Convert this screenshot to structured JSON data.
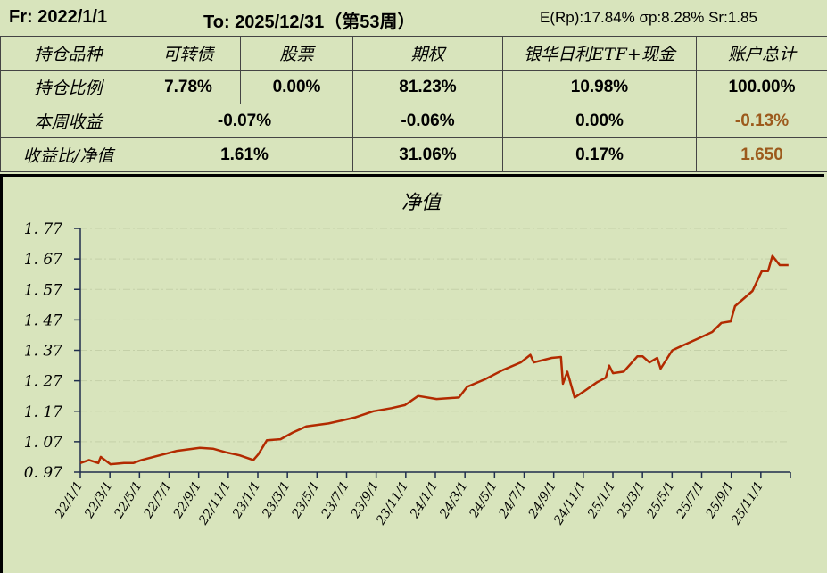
{
  "header": {
    "from": "Fr: 2022/1/1",
    "to": "To:  2025/12/31（第53周）",
    "stats": "E(Rp):17.84%  σp:8.28%  Sr:1.85"
  },
  "table": {
    "headers": [
      "持仓品种",
      "可转债",
      "股票",
      "期权",
      "银华日利ETF+现金",
      "账户总计"
    ],
    "position_ratio": {
      "label": "持仓比例",
      "values": [
        "7.78%",
        "0.00%",
        "81.23%",
        "10.98%",
        "100.00%"
      ]
    },
    "weekly_return": {
      "label": "本周收益",
      "values": [
        "-0.07%",
        "-0.06%",
        "0.00%",
        "-0.13%"
      ]
    },
    "return_nav": {
      "label": "收益比/净值",
      "values": [
        "1.61%",
        "31.06%",
        "0.17%",
        "1.650"
      ]
    }
  },
  "colors": {
    "line": "#b22a00",
    "highlight": "#9c5a1c",
    "background": "#d8e4bc"
  },
  "chart_data": {
    "type": "line",
    "title": "净值",
    "xlabel": "",
    "ylabel": "",
    "ylim": [
      0.97,
      1.77
    ],
    "yticks": [
      "0.97",
      "1.07",
      "1.17",
      "1.27",
      "1.37",
      "1.47",
      "1.57",
      "1.67",
      "1.77"
    ],
    "xticks": [
      "22/1/1",
      "22/3/1",
      "22/5/1",
      "22/7/1",
      "22/9/1",
      "22/11/1",
      "23/1/1",
      "23/3/1",
      "23/5/1",
      "23/7/1",
      "23/9/1",
      "23/11/1",
      "24/1/1",
      "24/3/1",
      "24/5/1",
      "24/7/1",
      "24/9/1",
      "24/11/1",
      "25/1/1",
      "25/3/1",
      "25/5/1",
      "25/7/1",
      "25/9/1",
      "25/11/1"
    ],
    "xlim": [
      "2022-01-01",
      "2026-01-01"
    ],
    "grid": "horizontal dash-dot",
    "series": [
      {
        "points": [
          [
            "2022-01-01",
            1.0
          ],
          [
            "2022-01-19",
            1.01
          ],
          [
            "2022-02-07",
            1.0
          ],
          [
            "2022-02-12",
            1.02
          ],
          [
            "2022-03-04",
            0.996
          ],
          [
            "2022-04-01",
            1.0
          ],
          [
            "2022-04-20",
            1.0
          ],
          [
            "2022-05-07",
            1.01
          ],
          [
            "2022-06-13",
            1.025
          ],
          [
            "2022-07-19",
            1.04
          ],
          [
            "2022-09-04",
            1.05
          ],
          [
            "2022-10-01",
            1.047
          ],
          [
            "2022-10-28",
            1.035
          ],
          [
            "2022-11-25",
            1.025
          ],
          [
            "2022-12-23",
            1.01
          ],
          [
            "2023-01-02",
            1.028
          ],
          [
            "2023-01-20",
            1.075
          ],
          [
            "2023-02-17",
            1.078
          ],
          [
            "2023-03-14",
            1.1
          ],
          [
            "2023-04-11",
            1.12
          ],
          [
            "2023-05-27",
            1.13
          ],
          [
            "2023-06-24",
            1.14
          ],
          [
            "2023-07-21",
            1.15
          ],
          [
            "2023-08-27",
            1.17
          ],
          [
            "2023-10-03",
            1.18
          ],
          [
            "2023-10-31",
            1.19
          ],
          [
            "2023-11-27",
            1.22
          ],
          [
            "2024-01-04",
            1.21
          ],
          [
            "2024-02-19",
            1.215
          ],
          [
            "2024-03-07",
            1.25
          ],
          [
            "2024-04-13",
            1.275
          ],
          [
            "2024-05-19",
            1.305
          ],
          [
            "2024-06-25",
            1.33
          ],
          [
            "2024-07-15",
            1.355
          ],
          [
            "2024-07-22",
            1.33
          ],
          [
            "2024-08-28",
            1.345
          ],
          [
            "2024-09-16",
            1.348
          ],
          [
            "2024-09-20",
            1.26
          ],
          [
            "2024-09-29",
            1.3
          ],
          [
            "2024-10-14",
            1.215
          ],
          [
            "2024-11-02",
            1.235
          ],
          [
            "2024-11-29",
            1.265
          ],
          [
            "2024-12-17",
            1.28
          ],
          [
            "2024-12-24",
            1.32
          ],
          [
            "2025-01-01",
            1.295
          ],
          [
            "2025-01-23",
            1.3
          ],
          [
            "2025-02-20",
            1.35
          ],
          [
            "2025-03-03",
            1.35
          ],
          [
            "2025-03-17",
            1.33
          ],
          [
            "2025-04-02",
            1.345
          ],
          [
            "2025-04-09",
            1.31
          ],
          [
            "2025-05-03",
            1.37
          ],
          [
            "2025-05-30",
            1.39
          ],
          [
            "2025-06-27",
            1.41
          ],
          [
            "2025-07-24",
            1.43
          ],
          [
            "2025-08-12",
            1.46
          ],
          [
            "2025-08-31",
            1.465
          ],
          [
            "2025-09-09",
            1.515
          ],
          [
            "2025-10-15",
            1.565
          ],
          [
            "2025-11-03",
            1.63
          ],
          [
            "2025-11-16",
            1.63
          ],
          [
            "2025-11-25",
            1.68
          ],
          [
            "2025-12-10",
            1.65
          ],
          [
            "2025-12-28",
            1.65
          ]
        ]
      }
    ]
  }
}
